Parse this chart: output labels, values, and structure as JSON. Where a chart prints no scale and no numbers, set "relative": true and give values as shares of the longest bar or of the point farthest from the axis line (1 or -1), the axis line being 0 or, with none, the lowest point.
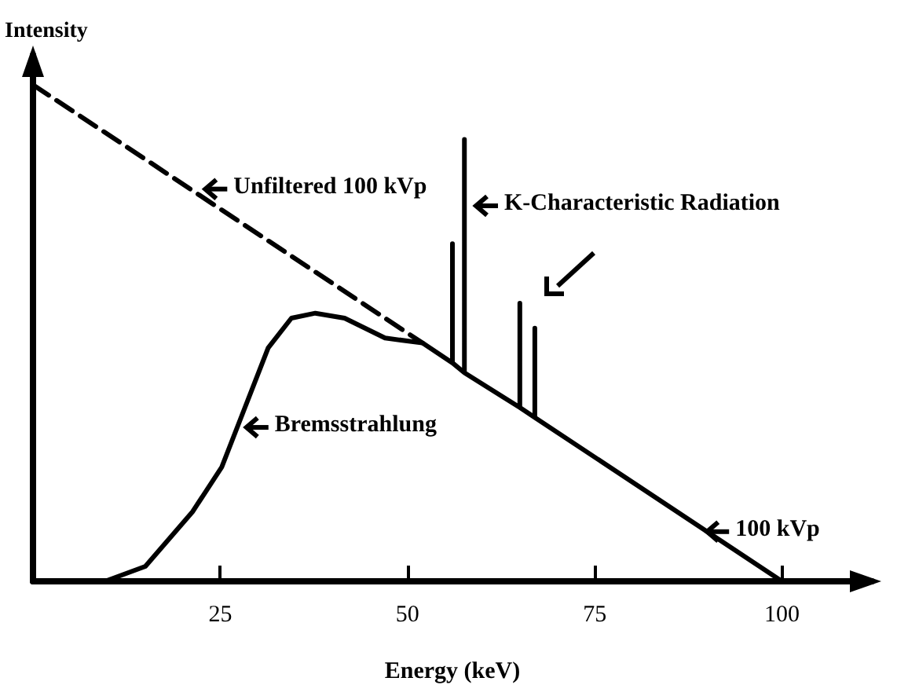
{
  "chart_data": {
    "type": "line",
    "relative": true,
    "xlabel": "Energy (keV)",
    "ylabel": "Intensity",
    "xlim": [
      0,
      112
    ],
    "xticks": [
      25,
      50,
      75,
      100
    ],
    "grid": false,
    "marker": "none",
    "series": [
      {
        "color": "#000000",
        "line_style": "dashed",
        "x": [
          0,
          52
        ],
        "values": [
          1,
          0.48
        ]
      },
      {
        "color": "#000000",
        "line_style": "solid",
        "x": [
          9.6,
          15,
          21.3,
          25.2,
          28.3,
          31.4,
          34.5,
          37.7,
          41.6,
          47,
          52,
          56,
          56,
          56,
          57.6,
          57.6,
          57.6,
          65,
          65,
          65,
          67,
          67,
          67,
          100
        ],
        "values": [
          0,
          0.03,
          0.14,
          0.23,
          0.35,
          0.47,
          0.53,
          0.54,
          0.53,
          0.49,
          0.48,
          0.44,
          0.68,
          0.44,
          0.42,
          0.89,
          0.42,
          0.35,
          0.56,
          0.35,
          0.33,
          0.51,
          0.33,
          0
        ]
      }
    ],
    "annotations": [
      {
        "text": "Unfiltered 100 kVp",
        "x": 23,
        "y": 0.79
      },
      "K-Characteristic Radiation",
      {
        "text": "Bremsstrahlung",
        "x": 28.5,
        "y": 0.31
      },
      {
        "text": "100 kVp",
        "x": 90,
        "y": 0.1
      }
    ]
  }
}
